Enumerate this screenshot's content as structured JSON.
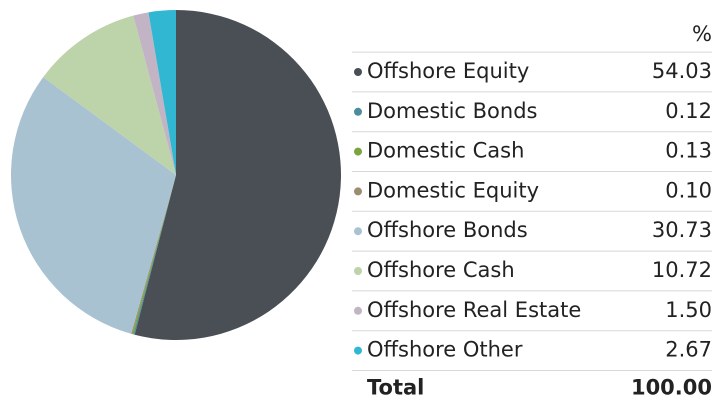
{
  "chart_data": {
    "type": "pie",
    "value_header": "%",
    "categories": [
      "Offshore Equity",
      "Domestic Bonds",
      "Domestic Cash",
      "Domestic Equity",
      "Offshore Bonds",
      "Offshore Cash",
      "Offshore Real Estate",
      "Offshore Other"
    ],
    "values": [
      54.03,
      0.12,
      0.13,
      0.1,
      30.73,
      10.72,
      1.5,
      2.67
    ],
    "value_labels": [
      "54.03",
      "0.12",
      "0.13",
      "0.10",
      "30.73",
      "10.72",
      "1.50",
      "2.67"
    ],
    "colors": [
      "#4a4f56",
      "#4a8d9c",
      "#7aa43e",
      "#9c8c70",
      "#a9c2d2",
      "#bdd3a9",
      "#c2b4c4",
      "#31b7d1"
    ],
    "total": {
      "name": "Total",
      "value": 100,
      "label": "100.00"
    }
  }
}
